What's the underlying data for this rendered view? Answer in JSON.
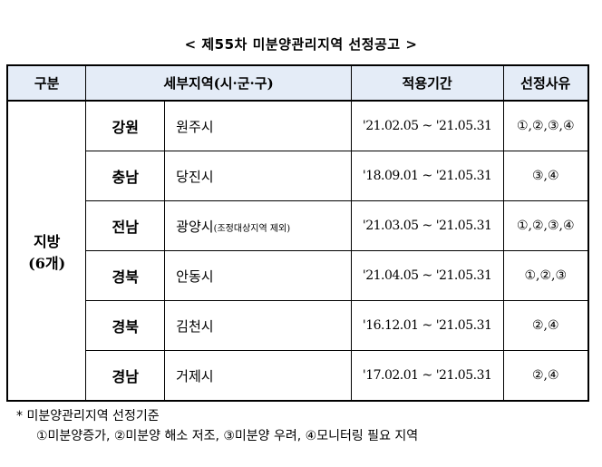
{
  "title": "< 제55차 미분양관리지역 선정공고 >",
  "table": {
    "headers": [
      "구분",
      "세부지역(시·군·구)",
      "적용기간",
      "선정사유"
    ],
    "group_label_line1": "지방",
    "group_label_line2": "(6개)",
    "rows": [
      {
        "province": "강원",
        "city": "원주시",
        "city_note": "",
        "period": "'21.02.05 ~ '21.05.31",
        "reason": "①,②,③,④"
      },
      {
        "province": "충남",
        "city": "당진시",
        "city_note": "",
        "period": "'18.09.01 ~ '21.05.31",
        "reason": "③,④"
      },
      {
        "province": "전남",
        "city": "광양시",
        "city_note": "(조정대상지역 제외)",
        "period": "'21.03.05 ~ '21.05.31",
        "reason": "①,②,③,④"
      },
      {
        "province": "경북",
        "city": "안동시",
        "city_note": "",
        "period": "'21.04.05 ~ '21.05.31",
        "reason": "①,②,③"
      },
      {
        "province": "경북",
        "city": "김천시",
        "city_note": "",
        "period": "'16.12.01 ~ '21.05.31",
        "reason": "②,④"
      },
      {
        "province": "경남",
        "city": "거제시",
        "city_note": "",
        "period": "'17.02.01 ~ '21.05.31",
        "reason": "②,④"
      }
    ]
  },
  "note": {
    "line1": "* 미분양관리지역 선정기준",
    "line2": "①미분양증가, ②미분양 해소 저조, ③미분양 우려, ④모니터링 필요 지역"
  },
  "colors": {
    "header_bg": "#e4ecf7"
  }
}
